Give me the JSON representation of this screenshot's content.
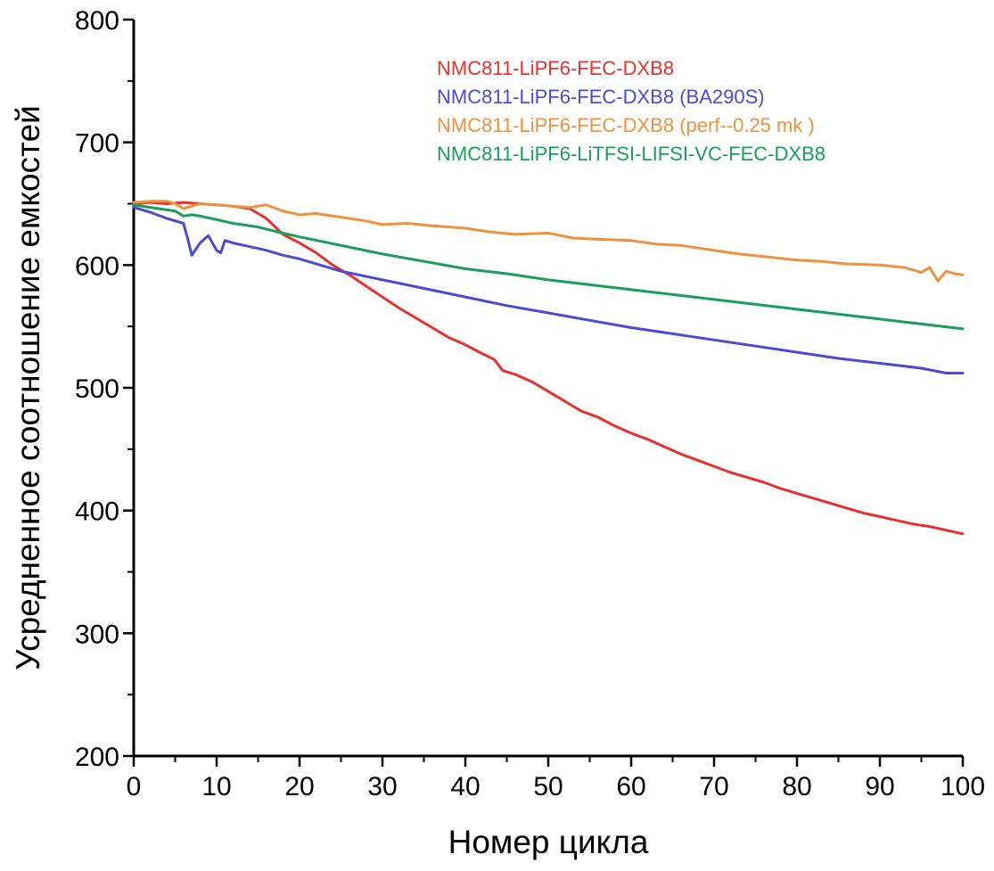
{
  "chart_data": {
    "type": "line",
    "title": "",
    "xlabel": "Номер цикла",
    "ylabel": "Усредненное соотношение емкостей",
    "xlim": [
      0,
      100
    ],
    "ylim": [
      200,
      800
    ],
    "xticks": [
      0,
      10,
      20,
      30,
      40,
      50,
      60,
      70,
      80,
      90,
      100
    ],
    "yticks": [
      200,
      300,
      400,
      500,
      600,
      700,
      800
    ],
    "grid": false,
    "legend_position": "top-right",
    "series": [
      {
        "name": "NMC811-LiPF6-FEC-DXB8",
        "color": "#e8312f",
        "x": [
          0,
          2,
          4,
          6,
          8,
          10,
          12,
          14,
          16,
          18,
          20,
          22,
          24,
          26,
          28,
          30,
          32,
          34,
          36,
          38,
          40,
          42,
          43.5,
          44.5,
          46,
          48,
          50,
          52,
          54,
          56,
          58,
          60,
          62,
          64,
          66,
          68,
          70,
          72,
          74,
          76,
          78,
          80,
          82,
          84,
          86,
          88,
          90,
          92,
          94,
          96,
          98,
          100
        ],
        "y": [
          650,
          651,
          650,
          651,
          650,
          649,
          648,
          646,
          638,
          625,
          618,
          610,
          600,
          592,
          583,
          574,
          565,
          557,
          549,
          541,
          535,
          528,
          523,
          514,
          511,
          505,
          497,
          489,
          481,
          476,
          469,
          463,
          458,
          452,
          446,
          441,
          436,
          431,
          427,
          423,
          418,
          414,
          410,
          406,
          402,
          398,
          395,
          392,
          389,
          387,
          384,
          381
        ]
      },
      {
        "name": "NMC811-LiPF6-FEC-DXB8 (BA290S)",
        "color": "#4b4bd6",
        "x": [
          0,
          2,
          4,
          6,
          6.5,
          7,
          8,
          9,
          10,
          10.5,
          11,
          12,
          14,
          16,
          18,
          20,
          25,
          30,
          35,
          40,
          45,
          50,
          55,
          60,
          65,
          70,
          75,
          80,
          85,
          90,
          95,
          98,
          100
        ],
        "y": [
          647,
          643,
          638,
          634,
          622,
          608,
          618,
          624,
          612,
          610,
          620,
          618,
          615,
          612,
          608,
          605,
          595,
          588,
          581,
          574,
          567,
          561,
          555,
          549,
          544,
          539,
          534,
          529,
          524,
          520,
          516,
          512,
          512
        ]
      },
      {
        "name": "NMC811-LiPF6-FEC-DXB8 (perf--0.25 mk )",
        "color": "#f0913c",
        "x": [
          0,
          2,
          4,
          5,
          6,
          7,
          8,
          10,
          12,
          14,
          16,
          18,
          20,
          22,
          25,
          28,
          30,
          33,
          36,
          40,
          43,
          46,
          50,
          53,
          56,
          60,
          63,
          66,
          70,
          73,
          76,
          80,
          83,
          86,
          90,
          93,
          95,
          96,
          97,
          98,
          99,
          100
        ],
        "y": [
          651,
          652,
          652,
          650,
          646,
          648,
          650,
          649,
          648,
          647,
          649,
          644,
          641,
          642,
          639,
          636,
          633,
          634,
          632,
          630,
          627,
          625,
          626,
          622,
          621,
          620,
          617,
          616,
          612,
          609,
          607,
          604,
          603,
          601,
          600,
          598,
          594,
          598,
          587,
          595,
          593,
          592
        ]
      },
      {
        "name": "NMC811-LiPF6-LiTFSI-LIFSI-VC-FEC-DXB8",
        "color": "#16a05a",
        "x": [
          0,
          2,
          4,
          5,
          6,
          7,
          8,
          10,
          12,
          15,
          18,
          20,
          25,
          30,
          35,
          40,
          45,
          50,
          55,
          60,
          65,
          70,
          75,
          80,
          85,
          90,
          95,
          100
        ],
        "y": [
          649,
          647,
          645,
          644,
          640,
          641,
          640,
          637,
          634,
          631,
          626,
          623,
          616,
          609,
          603,
          597,
          593,
          588,
          584,
          580,
          576,
          572,
          568,
          564,
          560,
          556,
          552,
          548
        ]
      }
    ]
  }
}
